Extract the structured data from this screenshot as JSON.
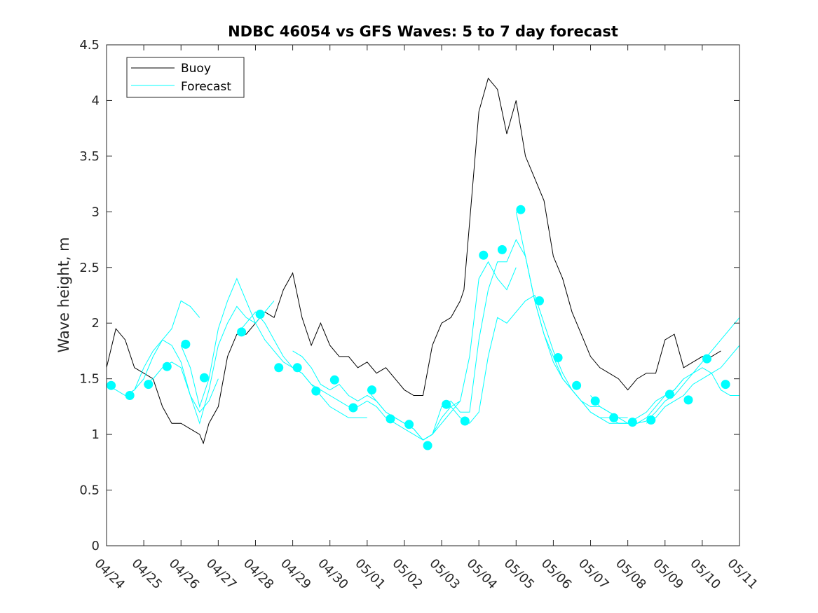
{
  "chart_data": {
    "type": "line",
    "title": "NDBC 46054 vs GFS Waves: 5 to 7 day forecast",
    "xlabel": "",
    "ylabel": "Wave height, m",
    "xlim": [
      0,
      17
    ],
    "ylim": [
      0,
      4.5
    ],
    "x_unit": "days from 04/24",
    "x_tick_labels": [
      "04/24",
      "04/25",
      "04/26",
      "04/27",
      "04/28",
      "04/29",
      "04/30",
      "05/01",
      "05/02",
      "05/03",
      "05/04",
      "05/05",
      "05/06",
      "05/07",
      "05/08",
      "05/09",
      "05/10",
      "05/11"
    ],
    "y_ticks": [
      0,
      0.5,
      1,
      1.5,
      2,
      2.5,
      3,
      3.5,
      4,
      4.5
    ],
    "y_tick_labels": [
      "0",
      "0.5",
      "1",
      "1.5",
      "2",
      "2.5",
      "3",
      "3.5",
      "4",
      "4.5"
    ],
    "grid": false,
    "legend_position": "top-left",
    "series": [
      {
        "name": "Buoy",
        "style": "line",
        "color": "#000000",
        "x": [
          0,
          0.25,
          0.5,
          0.75,
          1,
          1.25,
          1.5,
          1.75,
          2,
          2.25,
          2.5,
          2.6,
          2.75,
          3,
          3.25,
          3.5,
          3.75,
          4,
          4.25,
          4.5,
          4.75,
          5,
          5.25,
          5.5,
          5.75,
          6,
          6.25,
          6.5,
          6.75,
          7,
          7.25,
          7.5,
          7.75,
          8,
          8.25,
          8.5,
          8.75,
          9,
          9.25,
          9.5,
          9.6,
          9.75,
          10,
          10.25,
          10.5,
          10.75,
          11,
          11.25,
          11.5,
          11.75,
          12,
          12.25,
          12.5,
          12.75,
          13,
          13.25,
          13.5,
          13.75,
          14,
          14.25,
          14.5,
          14.75,
          15,
          15.25,
          15.5,
          15.75,
          16,
          16.25,
          16.5
        ],
        "y": [
          1.6,
          1.95,
          1.85,
          1.6,
          1.55,
          1.5,
          1.25,
          1.1,
          1.1,
          1.05,
          1.0,
          0.92,
          1.1,
          1.25,
          1.7,
          1.9,
          1.9,
          2.0,
          2.1,
          2.05,
          2.3,
          2.45,
          2.05,
          1.8,
          2.0,
          1.8,
          1.7,
          1.7,
          1.6,
          1.65,
          1.55,
          1.6,
          1.5,
          1.4,
          1.35,
          1.35,
          1.8,
          2.0,
          2.05,
          2.2,
          2.3,
          2.9,
          3.9,
          4.2,
          4.1,
          3.7,
          4.0,
          3.5,
          3.3,
          3.1,
          2.6,
          2.4,
          2.1,
          1.9,
          1.7,
          1.6,
          1.55,
          1.5,
          1.4,
          1.5,
          1.55,
          1.55,
          1.85,
          1.9,
          1.6,
          1.65,
          1.7,
          1.7,
          1.75
        ]
      },
      {
        "name": "Forecast",
        "style": "line",
        "color": "#00ffff",
        "runs": [
          {
            "x": [
              0,
              0.25,
              0.5,
              0.75,
              1,
              1.25,
              1.5,
              1.75,
              2,
              2.25,
              2.5
            ],
            "y": [
              1.45,
              1.4,
              1.35,
              1.4,
              1.6,
              1.75,
              1.85,
              1.95,
              2.2,
              2.15,
              2.05
            ]
          },
          {
            "x": [
              0.5,
              0.75,
              1,
              1.25,
              1.5,
              1.75,
              2,
              2.25,
              2.5,
              2.75,
              3
            ],
            "y": [
              1.35,
              1.4,
              1.5,
              1.7,
              1.85,
              1.8,
              1.65,
              1.35,
              1.2,
              1.3,
              1.5
            ]
          },
          {
            "x": [
              1,
              1.25,
              1.5,
              1.75,
              2,
              2.25,
              2.5,
              2.75,
              3,
              3.25,
              3.5,
              3.75,
              4,
              4.25,
              4.5
            ],
            "y": [
              1.45,
              1.5,
              1.6,
              1.65,
              1.6,
              1.35,
              1.1,
              1.4,
              1.8,
              2.0,
              2.15,
              2.05,
              2.0,
              2.1,
              2.2
            ]
          },
          {
            "x": [
              2,
              2.25,
              2.5,
              2.75,
              3,
              3.25,
              3.5,
              3.75,
              4,
              4.25,
              4.5,
              4.75,
              5,
              5.25,
              5.5,
              5.75,
              6,
              6.25,
              6.5,
              6.75,
              7
            ],
            "y": [
              1.8,
              1.6,
              1.25,
              1.5,
              1.95,
              2.2,
              2.4,
              2.2,
              2.0,
              1.85,
              1.75,
              1.65,
              1.6,
              1.55,
              1.45,
              1.35,
              1.25,
              1.2,
              1.15,
              1.15,
              1.15
            ]
          },
          {
            "x": [
              3.5,
              3.75,
              4,
              4.25,
              4.5,
              4.75,
              5,
              5.25,
              5.5,
              5.75,
              6,
              6.25,
              6.5,
              6.75,
              7,
              7.25,
              7.5,
              7.75,
              8,
              8.25,
              8.5,
              8.75,
              9,
              9.25,
              9.5
            ],
            "y": [
              1.9,
              2.0,
              2.1,
              2.0,
              1.85,
              1.7,
              1.6,
              1.55,
              1.45,
              1.4,
              1.35,
              1.3,
              1.25,
              1.25,
              1.3,
              1.25,
              1.15,
              1.1,
              1.05,
              1.0,
              0.95,
              1.0,
              1.1,
              1.2,
              1.3
            ]
          },
          {
            "x": [
              5,
              5.25,
              5.5,
              5.75,
              6,
              6.25,
              6.5,
              6.75,
              7,
              7.25,
              7.5,
              7.75,
              8,
              8.25,
              8.5,
              8.75,
              9,
              9.25,
              9.5,
              9.75,
              10,
              10.25,
              10.5,
              10.75,
              11
            ],
            "y": [
              1.75,
              1.7,
              1.6,
              1.45,
              1.4,
              1.45,
              1.35,
              1.3,
              1.35,
              1.3,
              1.2,
              1.15,
              1.1,
              1.05,
              0.95,
              1.0,
              1.25,
              1.25,
              1.3,
              1.7,
              2.4,
              2.55,
              2.4,
              2.3,
              2.5
            ]
          },
          {
            "x": [
              7,
              7.25,
              7.5,
              7.75,
              8,
              8.25,
              8.5,
              8.75,
              9,
              9.25,
              9.5,
              9.75,
              10,
              10.25,
              10.5,
              10.75,
              11,
              11.25,
              11.5,
              11.75,
              12,
              12.25,
              12.5,
              12.75,
              13,
              13.25,
              13.5,
              13.75,
              14
            ],
            "y": [
              1.4,
              1.3,
              1.2,
              1.15,
              1.1,
              1.05,
              0.95,
              1.0,
              1.15,
              1.25,
              1.15,
              1.1,
              1.2,
              1.7,
              2.05,
              2.0,
              2.1,
              2.2,
              2.25,
              2.0,
              1.75,
              1.55,
              1.4,
              1.3,
              1.25,
              1.25,
              1.2,
              1.15,
              1.15
            ]
          },
          {
            "x": [
              9,
              9.25,
              9.5,
              9.75,
              10,
              10.25,
              10.5,
              10.75,
              11,
              11.25,
              11.5,
              11.75,
              12,
              12.25,
              12.5,
              12.75,
              13,
              13.25,
              13.5,
              13.75,
              14,
              14.25,
              14.5,
              14.75,
              15,
              15.25,
              15.5
            ],
            "y": [
              1.25,
              1.3,
              1.2,
              1.2,
              1.85,
              2.3,
              2.55,
              2.55,
              2.75,
              2.6,
              2.2,
              1.9,
              1.65,
              1.5,
              1.4,
              1.3,
              1.2,
              1.15,
              1.1,
              1.1,
              1.1,
              1.15,
              1.2,
              1.3,
              1.35,
              1.4,
              1.5
            ]
          },
          {
            "x": [
              11,
              11.25,
              11.5,
              11.75,
              12,
              12.25,
              12.5,
              12.75,
              13,
              13.25,
              13.5,
              13.75,
              14,
              14.25,
              14.5,
              14.75,
              15,
              15.25,
              15.5,
              15.75,
              16,
              16.25,
              16.5,
              16.75,
              17
            ],
            "y": [
              3.0,
              2.6,
              2.2,
              1.9,
              1.7,
              1.5,
              1.4,
              1.3,
              1.2,
              1.15,
              1.15,
              1.1,
              1.1,
              1.1,
              1.15,
              1.25,
              1.35,
              1.4,
              1.5,
              1.55,
              1.6,
              1.55,
              1.4,
              1.35,
              1.35
            ]
          },
          {
            "x": [
              13,
              13.25,
              13.5,
              13.75,
              14,
              14.25,
              14.5,
              14.75,
              15,
              15.25,
              15.5,
              15.75,
              16,
              16.25,
              16.5,
              16.75,
              17
            ],
            "y": [
              1.35,
              1.25,
              1.2,
              1.15,
              1.1,
              1.1,
              1.12,
              1.2,
              1.3,
              1.35,
              1.45,
              1.55,
              1.65,
              1.75,
              1.85,
              1.95,
              2.05
            ]
          },
          {
            "x": [
              14.5,
              14.75,
              15,
              15.25,
              15.5,
              15.75,
              16,
              16.25,
              16.5,
              16.75,
              17
            ],
            "y": [
              1.1,
              1.15,
              1.25,
              1.3,
              1.35,
              1.45,
              1.5,
              1.55,
              1.6,
              1.7,
              1.8
            ]
          }
        ]
      },
      {
        "style": "markers",
        "color": "#00ffff",
        "x": [
          0.125,
          0.625,
          1.125,
          1.625,
          2.125,
          2.625,
          3.625,
          4.125,
          4.625,
          5.125,
          5.625,
          6.125,
          6.625,
          7.125,
          7.625,
          8.125,
          8.625,
          9.125,
          9.625,
          10.125,
          10.625,
          11.125,
          11.625,
          12.125,
          12.625,
          13.125,
          13.625,
          14.125,
          14.625,
          15.125,
          15.625,
          16.125,
          16.625
        ],
        "y": [
          1.44,
          1.35,
          1.45,
          1.61,
          1.81,
          1.51,
          1.92,
          2.08,
          1.6,
          1.6,
          1.39,
          1.49,
          1.24,
          1.4,
          1.14,
          1.09,
          0.9,
          1.27,
          1.12,
          2.61,
          2.66,
          3.02,
          2.2,
          1.69,
          1.44,
          1.3,
          1.15,
          1.11,
          1.13,
          1.36,
          1.31,
          1.68,
          1.45
        ]
      }
    ]
  }
}
